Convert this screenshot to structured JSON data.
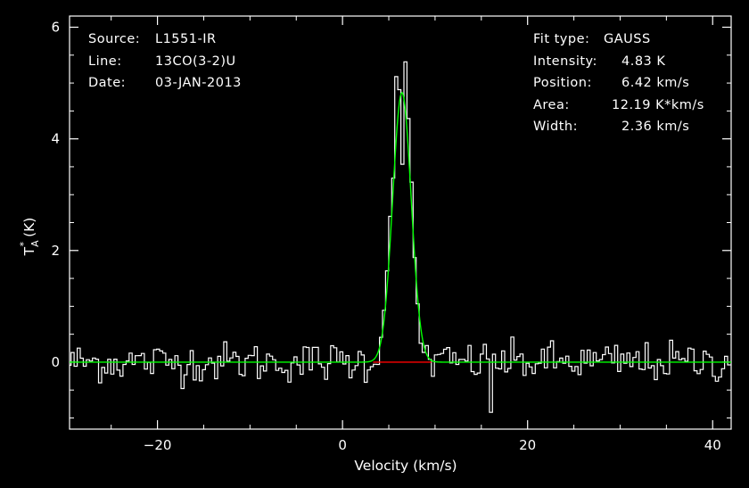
{
  "info_left": [
    {
      "label": "Source:",
      "value": "L1551-IR"
    },
    {
      "label": "Line:",
      "value": "13CO(3-2)U"
    },
    {
      "label": "Date:",
      "value": "03-JAN-2013"
    }
  ],
  "info_right": [
    {
      "label": "Fit type:",
      "value": "GAUSS"
    },
    {
      "label": "Intensity:",
      "value": "4.83 K"
    },
    {
      "label": "Position:",
      "value": "6.42 km/s"
    },
    {
      "label": "Area:",
      "value": "12.19 K*km/s"
    },
    {
      "label": "Width:",
      "value": "2.36 km/s"
    }
  ],
  "colors": {
    "background": "#000000",
    "axes": "#ffffff",
    "spectrum": "#ffffff",
    "fit": "#00ff00",
    "baseline_marker": "#ff0000"
  },
  "chart_data": {
    "type": "line",
    "title": "",
    "xlabel": "Velocity (km/s)",
    "ylabel_main": "T",
    "ylabel_sub": "A",
    "ylabel_sup": "*",
    "ylabel_unit": " (K)",
    "xlim": [
      -29.5,
      42
    ],
    "ylim": [
      -1.2,
      6.2
    ],
    "xticks": [
      -20,
      0,
      20,
      40
    ],
    "xtick_labels": [
      "−20",
      "0",
      "20",
      "40"
    ],
    "yticks": [
      0,
      2,
      4,
      6
    ],
    "ytick_labels": [
      "0",
      "2",
      "4",
      "6"
    ],
    "grid": false,
    "spectrum": {
      "name": "13CO(3-2)U",
      "channel_width_kms": 0.33,
      "noise_rms_K": 0.18,
      "line_peak_samples": [
        {
          "x": 4.0,
          "y": 0.3
        },
        {
          "x": 4.5,
          "y": 0.9
        },
        {
          "x": 5.0,
          "y": 2.2
        },
        {
          "x": 5.5,
          "y": 3.6
        },
        {
          "x": 6.0,
          "y": 5.8
        },
        {
          "x": 6.4,
          "y": 3.1
        },
        {
          "x": 6.7,
          "y": 5.5
        },
        {
          "x": 7.0,
          "y": 4.6
        },
        {
          "x": 7.5,
          "y": 3.0
        },
        {
          "x": 8.0,
          "y": 1.2
        },
        {
          "x": 8.5,
          "y": 0.2
        }
      ],
      "notable_dip": {
        "x": 16.0,
        "y": -0.9
      }
    },
    "fit": {
      "type": "GAUSS",
      "amplitude_K": 4.83,
      "center_kms": 6.42,
      "fwhm_kms": 2.36
    },
    "baseline_range_marker": {
      "x_start": 3.3,
      "x_end": 9.6,
      "y": 0
    }
  }
}
